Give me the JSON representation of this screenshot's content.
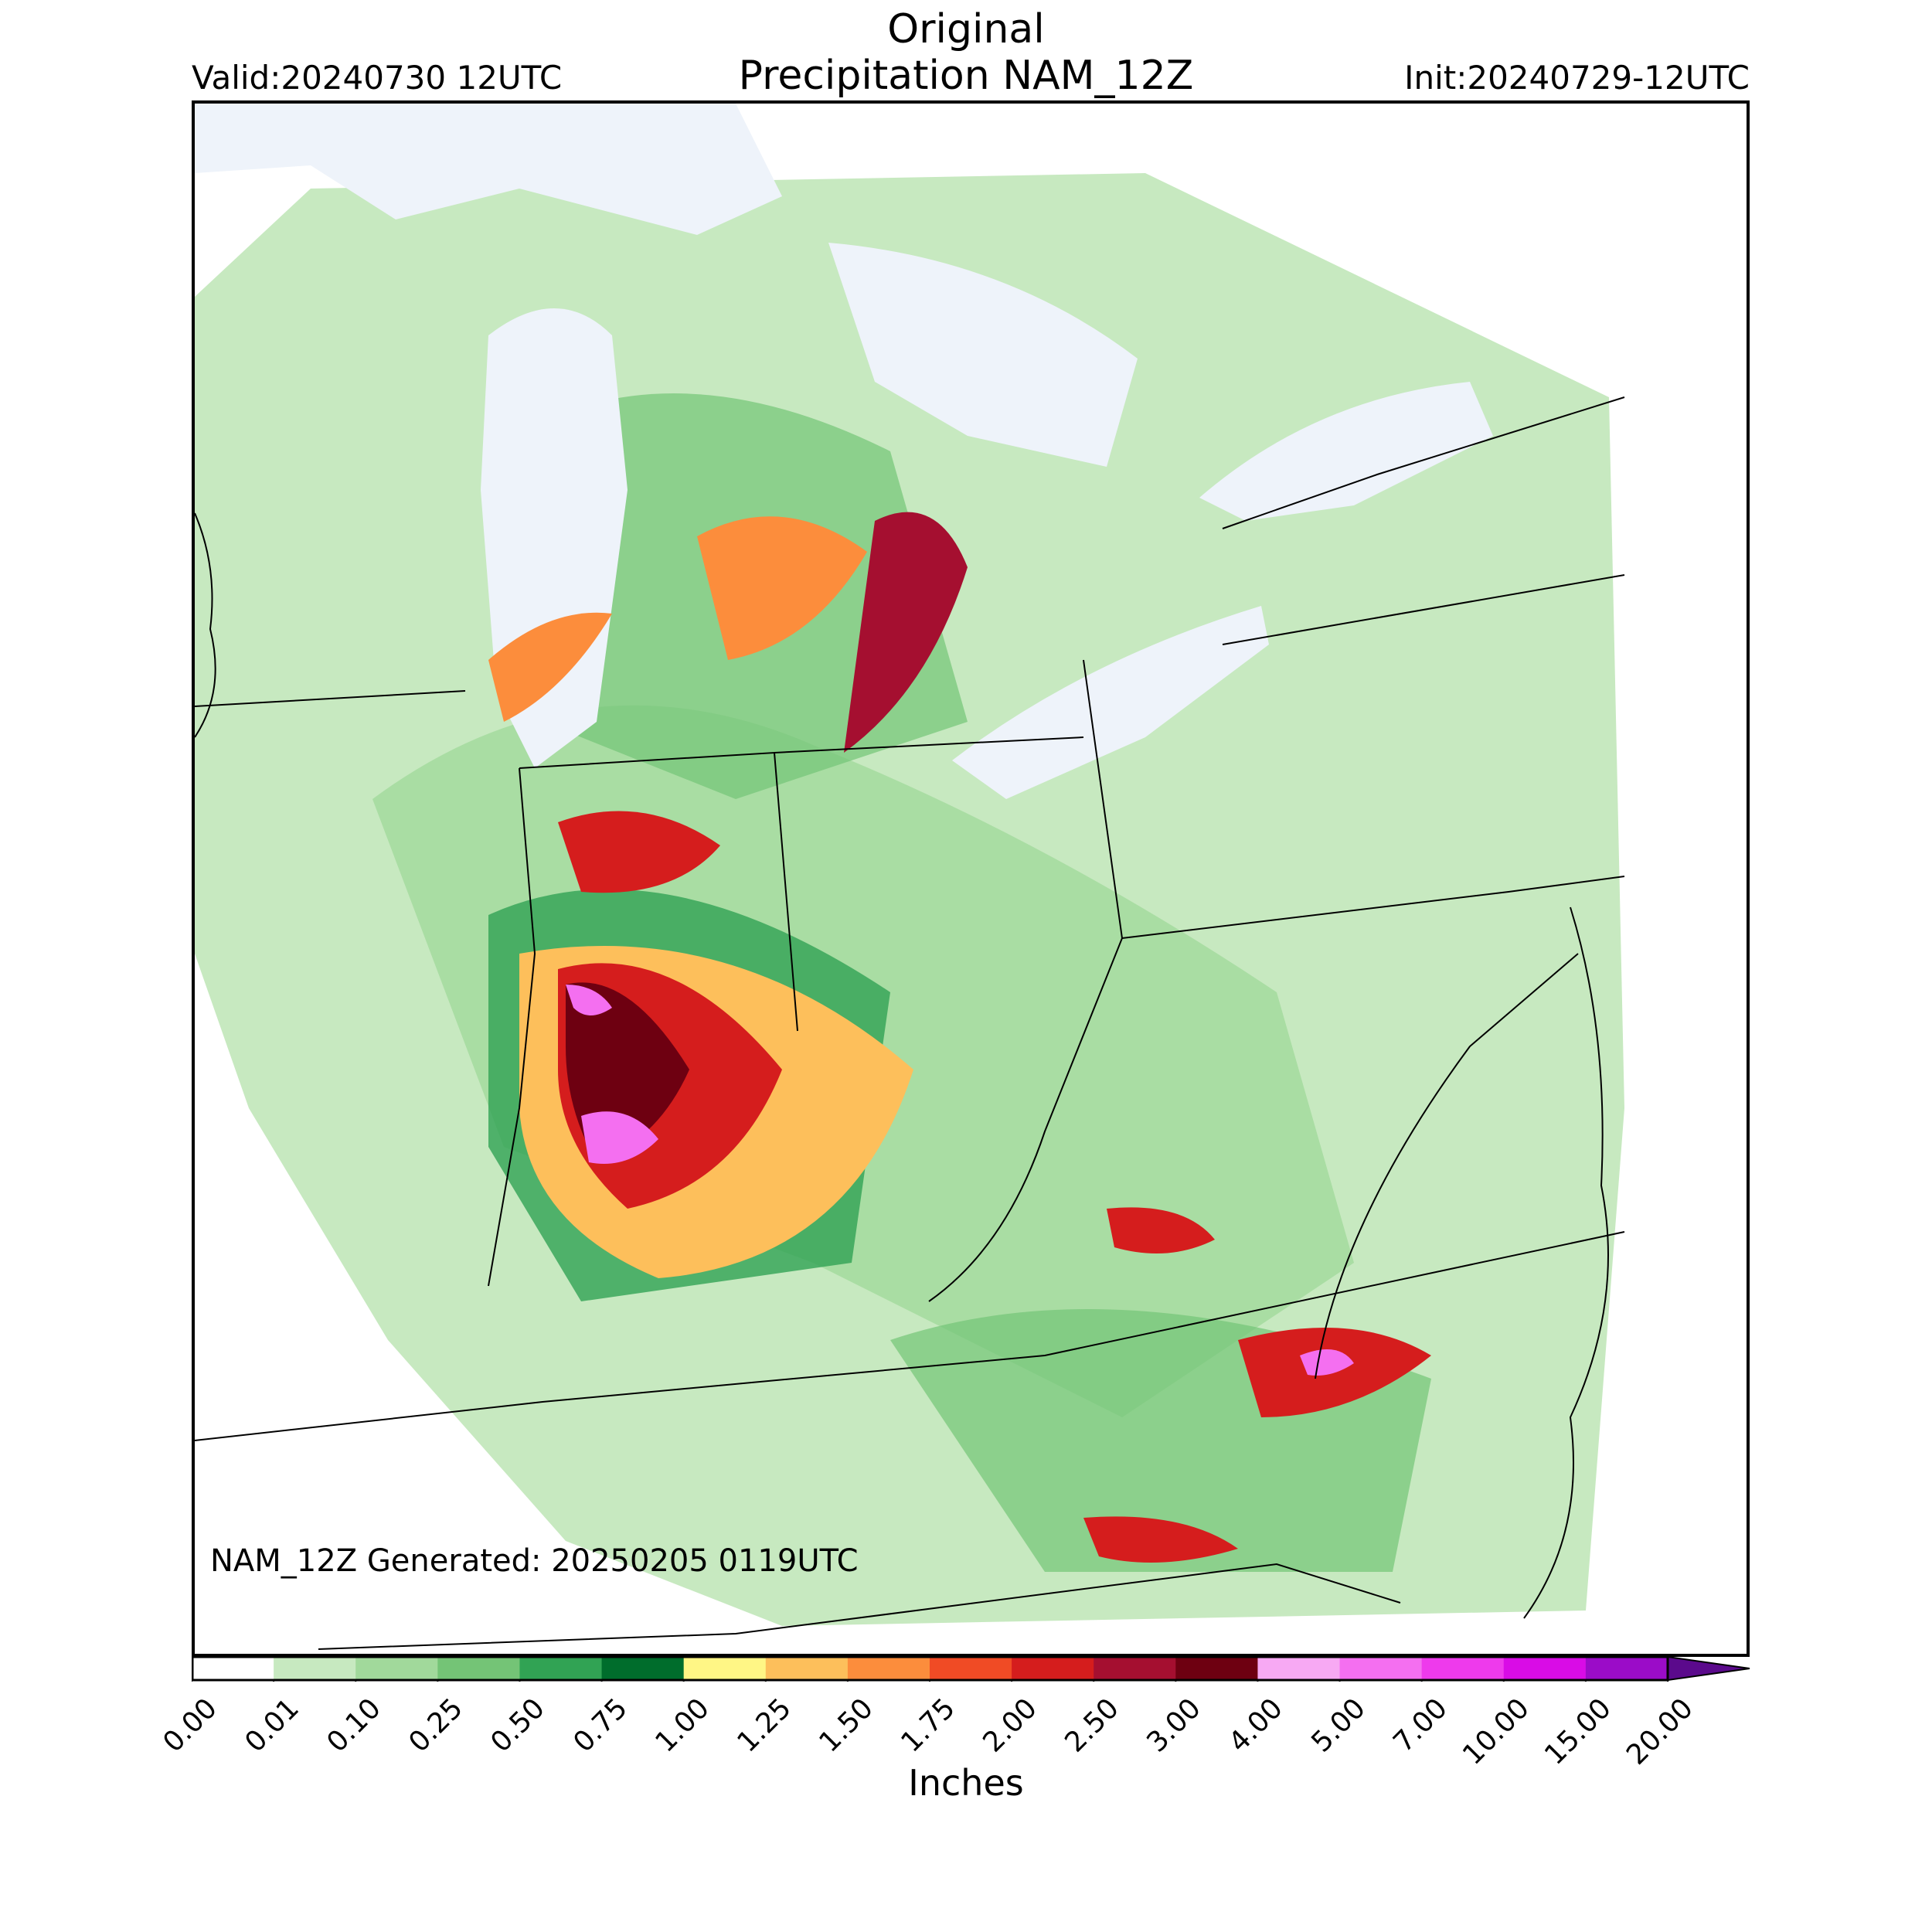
{
  "header": {
    "title_line1": "Original",
    "title_line2": "Precipitation NAM_12Z",
    "valid": "Valid:20240730 12UTC",
    "init": "Init:20240729-12UTC"
  },
  "map": {
    "generated_note": "NAM_12Z Generated: 20250205 0119UTC",
    "lake_color": "#eef3fa",
    "boundary_color": "#000000"
  },
  "colorbar": {
    "label": "Inches",
    "ticks": [
      "0.00",
      "0.01",
      "0.10",
      "0.25",
      "0.50",
      "0.75",
      "1.00",
      "1.25",
      "1.50",
      "1.75",
      "2.00",
      "2.50",
      "3.00",
      "4.00",
      "5.00",
      "7.00",
      "10.00",
      "15.00",
      "20.00"
    ],
    "colors": [
      "#ffffff",
      "#c7e9c0",
      "#a1d99b",
      "#74c476",
      "#31a354",
      "#006d2c",
      "#fff685",
      "#fdbf5b",
      "#fc8d3c",
      "#f04b25",
      "#d51d1d",
      "#a50f30",
      "#6e0011",
      "#f7a9f3",
      "#f46ff0",
      "#ee3aec",
      "#d90ce6",
      "#9b0cc8"
    ],
    "extend_color": "#5b0a8c"
  }
}
